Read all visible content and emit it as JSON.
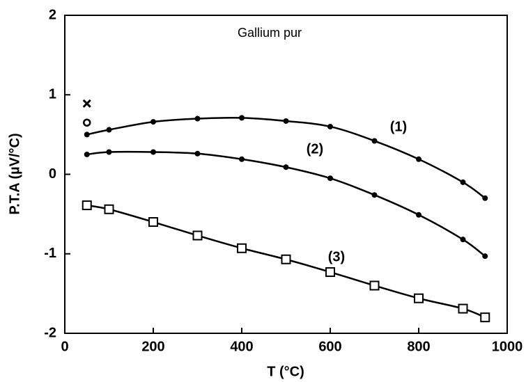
{
  "chart_data": {
    "type": "line",
    "title": "Gallium pur",
    "xlabel": "T (°C)",
    "ylabel": "P.T.A (µV/°C)",
    "xlim": [
      0,
      1000
    ],
    "xticks": [
      0,
      200,
      400,
      600,
      800,
      1000
    ],
    "ylim": [
      -2,
      2
    ],
    "yticks": [
      -2,
      -1,
      0,
      1,
      2
    ],
    "x": [
      50,
      100,
      200,
      300,
      400,
      500,
      600,
      700,
      800,
      900,
      950
    ],
    "series": [
      {
        "name": "(1)",
        "color": "#000000",
        "marker": "circle",
        "values": [
          0.5,
          0.56,
          0.66,
          0.7,
          0.71,
          0.67,
          0.6,
          0.42,
          0.19,
          -0.1,
          -0.3
        ]
      },
      {
        "name": "(2)",
        "color": "#000000",
        "marker": "circle",
        "values": [
          0.25,
          0.28,
          0.28,
          0.26,
          0.19,
          0.09,
          -0.05,
          -0.26,
          -0.51,
          -0.82,
          -1.03
        ]
      },
      {
        "name": "(3)",
        "color": "#000000",
        "marker": "square",
        "values": [
          -0.39,
          -0.44,
          -0.6,
          -0.77,
          -0.93,
          -1.07,
          -1.23,
          -1.4,
          -1.56,
          -1.69,
          -1.8
        ]
      }
    ],
    "extra_points": [
      {
        "marker": "x",
        "x": 50,
        "y": 0.89
      },
      {
        "marker": "o",
        "x": 50,
        "y": 0.65
      }
    ]
  }
}
